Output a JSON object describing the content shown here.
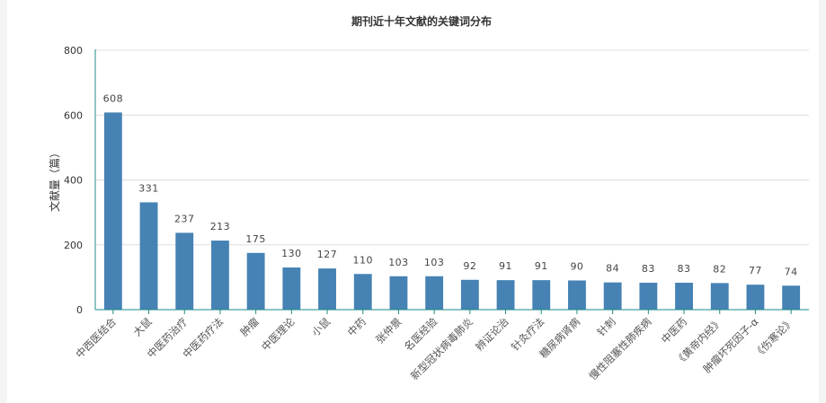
{
  "chart_data": {
    "type": "bar",
    "title": "期刊近十年文献的关键词分布",
    "xlabel": "",
    "ylabel": "文献量（篇）",
    "ylim": [
      0,
      800
    ],
    "yticks": [
      0,
      200,
      400,
      600,
      800
    ],
    "grid": true,
    "bar_color": "#4682b4",
    "categories": [
      "中西医结合",
      "大鼠",
      "中医药治疗",
      "中医药疗法",
      "肿瘤",
      "中医理论",
      "小鼠",
      "中药",
      "张仲景",
      "名医经验",
      "新型冠状病毒肺炎",
      "辨证论治",
      "针灸疗法",
      "糖尿病肾病",
      "针刺",
      "慢性阻塞性肺疾病",
      "中医药",
      "《黄帝内经》",
      "肿瘤坏死因子-α",
      "《伤寒论》"
    ],
    "values": [
      608,
      331,
      237,
      213,
      175,
      130,
      127,
      110,
      103,
      103,
      92,
      91,
      91,
      90,
      84,
      83,
      83,
      82,
      77,
      74
    ]
  }
}
